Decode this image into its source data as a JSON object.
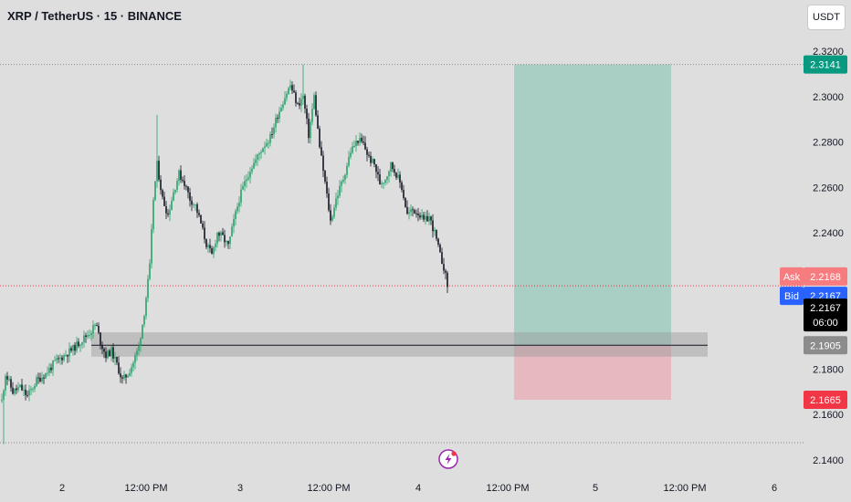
{
  "header": {
    "title": "XRP / TetherUS · 15 · BINANCE",
    "currency": "USDT"
  },
  "colors": {
    "up": "#26a269",
    "down": "#131722",
    "profit_zone": "#a9cfc5",
    "loss_zone": "#e5b9bf",
    "target_tag": "#089981",
    "stop_tag": "#f23645",
    "entry_tag": "#8c8c8c",
    "ask_tag": "#f77c80",
    "bid_tag": "#2962ff",
    "price_tag": "#000000"
  },
  "chart_data": {
    "type": "candlestick",
    "title": "XRP / TetherUS · 15 · BINANCE",
    "ylim": [
      2.13,
      2.325
    ],
    "y_ticks": [
      "2.3200",
      "2.3000",
      "2.2800",
      "2.2600",
      "2.2400",
      "2.2200",
      "2.2000",
      "2.1800",
      "2.1600",
      "2.1400"
    ],
    "x_ticks": [
      "2",
      "12:00 PM",
      "3",
      "12:00 PM",
      "4",
      "12:00 PM",
      "5",
      "12:00 PM",
      "6"
    ],
    "price_path": [
      [
        0,
        2.16
      ],
      [
        6,
        2.178
      ],
      [
        14,
        2.17
      ],
      [
        22,
        2.172
      ],
      [
        30,
        2.168
      ],
      [
        40,
        2.175
      ],
      [
        50,
        2.178
      ],
      [
        60,
        2.183
      ],
      [
        70,
        2.186
      ],
      [
        80,
        2.189
      ],
      [
        90,
        2.193
      ],
      [
        100,
        2.197
      ],
      [
        105,
        2.2
      ],
      [
        110,
        2.192
      ],
      [
        116,
        2.186
      ],
      [
        122,
        2.188
      ],
      [
        128,
        2.182
      ],
      [
        134,
        2.175
      ],
      [
        140,
        2.178
      ],
      [
        146,
        2.183
      ],
      [
        152,
        2.19
      ],
      [
        158,
        2.205
      ],
      [
        164,
        2.225
      ],
      [
        168,
        2.255
      ],
      [
        172,
        2.27
      ],
      [
        178,
        2.255
      ],
      [
        184,
        2.248
      ],
      [
        190,
        2.258
      ],
      [
        196,
        2.266
      ],
      [
        202,
        2.262
      ],
      [
        208,
        2.255
      ],
      [
        214,
        2.252
      ],
      [
        220,
        2.244
      ],
      [
        226,
        2.235
      ],
      [
        232,
        2.23
      ],
      [
        238,
        2.24
      ],
      [
        244,
        2.238
      ],
      [
        250,
        2.234
      ],
      [
        256,
        2.245
      ],
      [
        262,
        2.255
      ],
      [
        268,
        2.262
      ],
      [
        274,
        2.268
      ],
      [
        280,
        2.272
      ],
      [
        288,
        2.278
      ],
      [
        296,
        2.282
      ],
      [
        304,
        2.292
      ],
      [
        312,
        2.3
      ],
      [
        318,
        2.305
      ],
      [
        326,
        2.296
      ],
      [
        332,
        2.3
      ],
      [
        338,
        2.283
      ],
      [
        344,
        2.3
      ],
      [
        350,
        2.278
      ],
      [
        356,
        2.262
      ],
      [
        362,
        2.245
      ],
      [
        368,
        2.255
      ],
      [
        376,
        2.264
      ],
      [
        384,
        2.276
      ],
      [
        392,
        2.281
      ],
      [
        398,
        2.279
      ],
      [
        404,
        2.273
      ],
      [
        410,
        2.27
      ],
      [
        416,
        2.262
      ],
      [
        422,
        2.264
      ],
      [
        428,
        2.27
      ],
      [
        434,
        2.266
      ],
      [
        440,
        2.26
      ],
      [
        446,
        2.248
      ],
      [
        452,
        2.25
      ],
      [
        458,
        2.249
      ],
      [
        464,
        2.245
      ],
      [
        470,
        2.247
      ],
      [
        476,
        2.24
      ],
      [
        482,
        2.23
      ],
      [
        486,
        2.225
      ],
      [
        490,
        2.2167
      ]
    ],
    "support_zone": {
      "high": 2.1962,
      "low": 2.1855
    },
    "position": {
      "entry": 2.1905,
      "target": 2.3141,
      "stop": 2.1665
    },
    "levels": {
      "ask": {
        "label": "Ask",
        "value": "2.2168"
      },
      "bid": {
        "label": "Bid",
        "value": "2.2167"
      },
      "last": {
        "value": "2.2167",
        "countdown": "06:00"
      },
      "target": {
        "value": "2.3141"
      },
      "entry": {
        "value": "2.1905"
      },
      "stop": {
        "value": "2.1665"
      }
    },
    "grid": false,
    "legend": "none"
  }
}
